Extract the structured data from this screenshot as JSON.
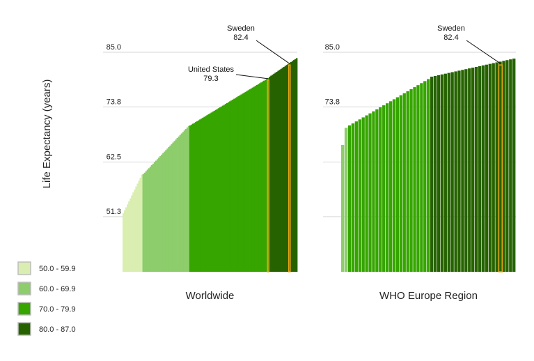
{
  "chart_data": {
    "type": "bar",
    "ylabel": "Life Expectancy (years)",
    "ylim": [
      40,
      85
    ],
    "yticks": [
      "85.0",
      "73.8",
      "62.5",
      "51.3"
    ],
    "legend": {
      "placement": "bottom-left",
      "items": [
        {
          "label": "50.0 - 59.9",
          "color": "#d9eeb0"
        },
        {
          "label": "60.0 - 69.9",
          "color": "#8dcd6b"
        },
        {
          "label": "70.0 - 79.9",
          "color": "#36a500"
        },
        {
          "label": "80.0 - 87.0",
          "color": "#266300"
        }
      ]
    },
    "highlight_color": "#e8a317",
    "panels": [
      {
        "name": "Worldwide",
        "series": [
          {
            "range": "50.0 - 59.9",
            "count": 14,
            "from": 52.0,
            "to": 59.9
          },
          {
            "range": "60.0 - 69.9",
            "count": 33,
            "from": 60.0,
            "to": 69.9
          },
          {
            "range": "70.0 - 79.9",
            "count": 56,
            "from": 70.0,
            "to": 79.7
          },
          {
            "range": "80.0 - 87.0",
            "count": 20,
            "from": 80.0,
            "to": 83.8
          }
        ],
        "annotations": [
          {
            "label": "United States",
            "value": "79.3",
            "index": 102
          },
          {
            "label": "Sweden",
            "value": "82.4",
            "index": 117
          }
        ]
      },
      {
        "name": "WHO Europe Region",
        "series": [
          {
            "range": "60.0 - 69.9",
            "count": 2,
            "from": 66.0,
            "to": 69.5
          },
          {
            "range": "70.0 - 79.9",
            "count": 24,
            "from": 70.0,
            "to": 79.5
          },
          {
            "range": "80.0 - 87.0",
            "count": 25,
            "from": 80.0,
            "to": 83.7
          }
        ],
        "annotations": [
          {
            "label": "Sweden",
            "value": "82.4",
            "index": 46
          }
        ]
      }
    ]
  }
}
